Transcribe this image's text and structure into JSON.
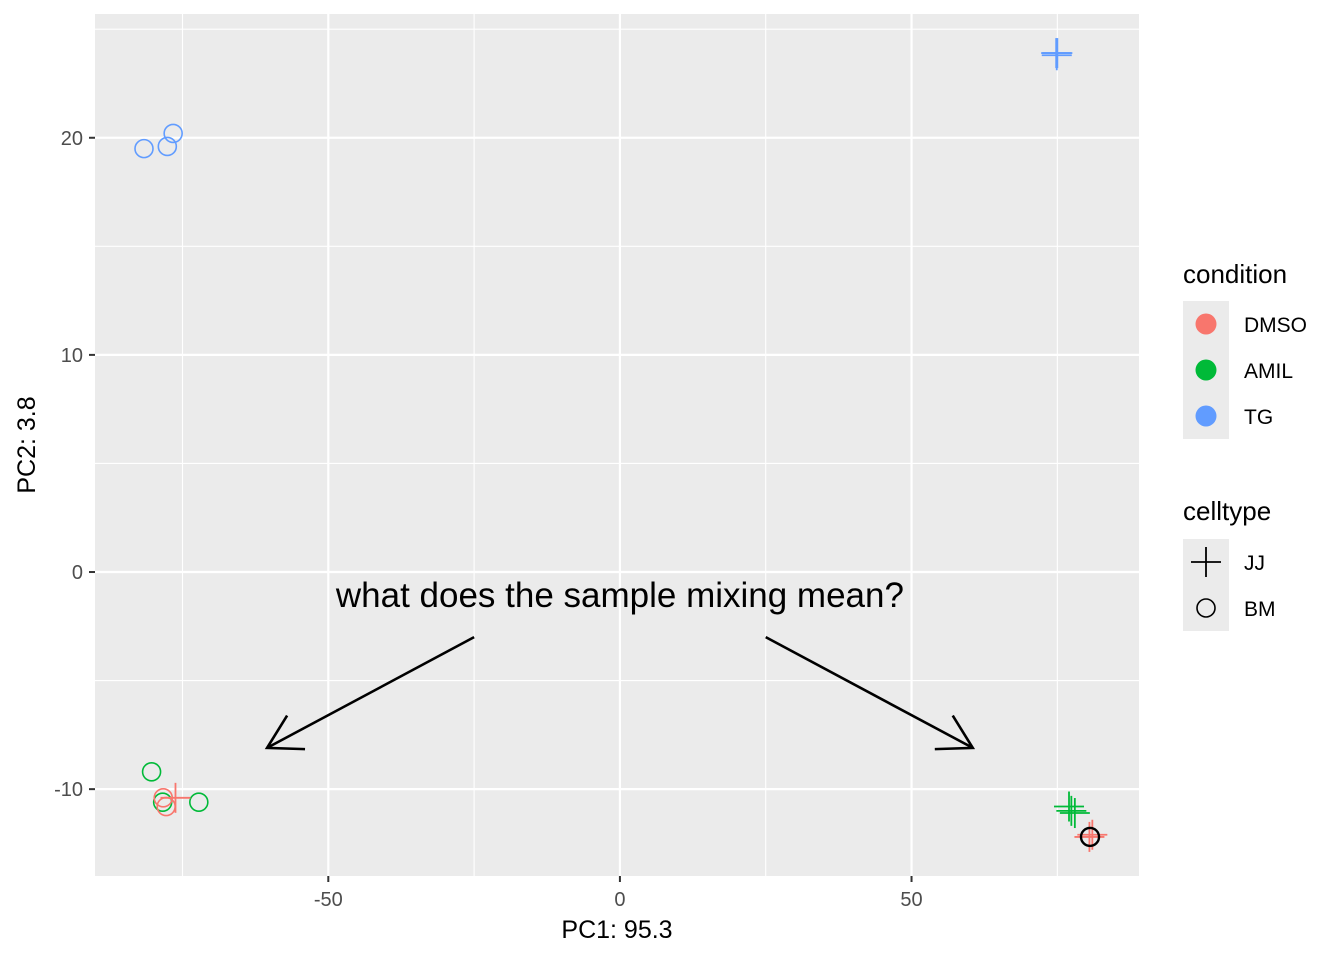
{
  "chart_data": {
    "type": "scatter",
    "xlabel": "PC1: 95.3",
    "ylabel": "PC2: 3.8",
    "xlim": [
      -90,
      89
    ],
    "ylim": [
      -14,
      25.7
    ],
    "xticks": [
      -50,
      0,
      50
    ],
    "yticks": [
      -10,
      0,
      10,
      20
    ],
    "xtick_labels": [
      "-50",
      "0",
      "50"
    ],
    "ytick_labels": [
      "-10",
      "0",
      "10",
      "20"
    ],
    "grid": true,
    "legend_position": "right",
    "legends": [
      {
        "title": "condition",
        "items": [
          {
            "label": "DMSO",
            "color": "#F8766D"
          },
          {
            "label": "AMIL",
            "color": "#00BA38"
          },
          {
            "label": "TG",
            "color": "#619CFF"
          }
        ]
      },
      {
        "title": "celltype",
        "items": [
          {
            "label": "JJ",
            "shape": "cross"
          },
          {
            "label": "BM",
            "shape": "circle"
          }
        ]
      }
    ],
    "points": [
      {
        "x": -81.6,
        "y": 19.5,
        "condition": "TG",
        "celltype": "BM"
      },
      {
        "x": -77.6,
        "y": 19.6,
        "condition": "TG",
        "celltype": "BM"
      },
      {
        "x": -76.6,
        "y": 20.2,
        "condition": "TG",
        "celltype": "BM"
      },
      {
        "x": -80.3,
        "y": -9.2,
        "condition": "AMIL",
        "celltype": "BM"
      },
      {
        "x": -78.4,
        "y": -10.6,
        "condition": "AMIL",
        "celltype": "BM"
      },
      {
        "x": -72.2,
        "y": -10.6,
        "condition": "AMIL",
        "celltype": "BM"
      },
      {
        "x": -78.3,
        "y": -10.4,
        "condition": "DMSO",
        "celltype": "BM"
      },
      {
        "x": -77.8,
        "y": -10.8,
        "condition": "DMSO",
        "celltype": "BM"
      },
      {
        "x": -76.2,
        "y": -10.4,
        "condition": "DMSO",
        "celltype": "JJ"
      },
      {
        "x": 74.8,
        "y": 23.9,
        "condition": "TG",
        "celltype": "JJ"
      },
      {
        "x": 74.9,
        "y": 23.8,
        "condition": "TG",
        "celltype": "JJ"
      },
      {
        "x": 75.0,
        "y": 23.9,
        "condition": "TG",
        "celltype": "JJ"
      },
      {
        "x": 77.0,
        "y": -10.8,
        "condition": "AMIL",
        "celltype": "JJ"
      },
      {
        "x": 77.4,
        "y": -11.0,
        "condition": "AMIL",
        "celltype": "JJ"
      },
      {
        "x": 78.0,
        "y": -11.1,
        "condition": "AMIL",
        "celltype": "JJ"
      },
      {
        "x": 80.5,
        "y": -12.2,
        "condition": "DMSO",
        "celltype": "JJ"
      },
      {
        "x": 81.0,
        "y": -12.1,
        "condition": "DMSO",
        "celltype": "JJ"
      },
      {
        "x": 80.6,
        "y": -12.2,
        "condition": "DMSO",
        "celltype": "BM"
      },
      {
        "x": 80.6,
        "y": -12.2,
        "condition": "DMSO",
        "celltype": "BM"
      }
    ],
    "highlight_point": {
      "x": 80.6,
      "y": -12.2
    },
    "annotation": {
      "text": "what does the sample mixing mean?",
      "arrows": [
        {
          "from": [
            -25,
            -3
          ],
          "to": [
            -60.5,
            -8.1
          ]
        },
        {
          "from": [
            25,
            -3
          ],
          "to": [
            60.5,
            -8.1
          ]
        }
      ]
    }
  }
}
